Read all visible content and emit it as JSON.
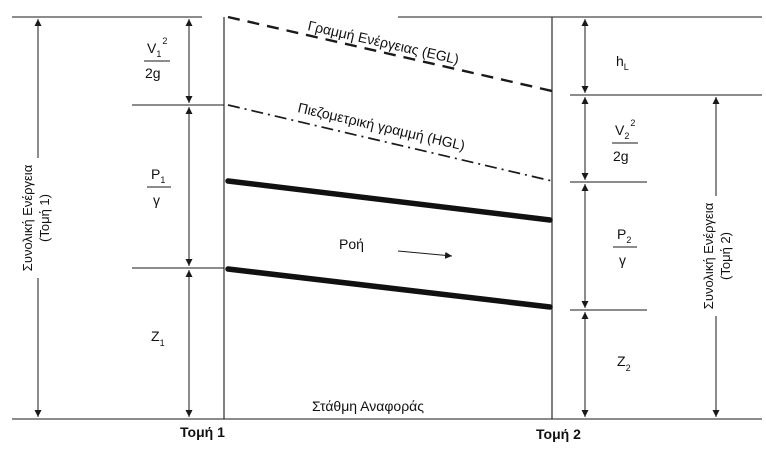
{
  "diagram": {
    "egl_label": "Γραμμή Ενέργειας (EGL)",
    "hgl_label": "Πιεζομετρική γραμμή (HGL)",
    "flow_label": "Ροή",
    "datum_label": "Στάθμη Αναφοράς",
    "section1_label": "Τομή 1",
    "section2_label": "Τομή 2",
    "total_energy_1": {
      "line1": "Συνολική Ενέργεια",
      "line2": "(Τομή 1)"
    },
    "total_energy_2": {
      "line1": "Συνολική Ενέργεια",
      "line2": "(Τομή 2)"
    },
    "v1": {
      "sym": "V",
      "sub": "1",
      "sup": "2",
      "den": "2g"
    },
    "v2": {
      "sym": "V",
      "sub": "2",
      "sup": "2",
      "den": "2g"
    },
    "p1": {
      "sym": "P",
      "sub": "1",
      "den": "γ"
    },
    "p2": {
      "sym": "P",
      "sub": "2",
      "den": "γ"
    },
    "z1": {
      "sym": "Z",
      "sub": "1"
    },
    "z2": {
      "sym": "Z",
      "sub": "2"
    },
    "hl": {
      "sym": "h",
      "sub": "L"
    }
  }
}
